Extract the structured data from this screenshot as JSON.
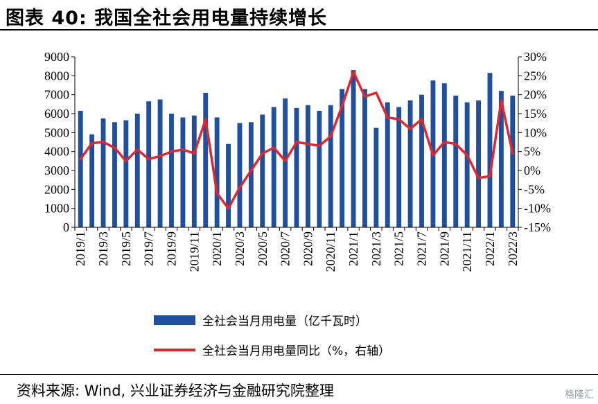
{
  "header": {
    "title": "图表 40:  我国全社会用电量持续增长"
  },
  "footer": {
    "source": "资料来源:  Wind, 兴业证券经济与金融研究院整理",
    "watermark": "格隆汇"
  },
  "colors": {
    "bar": "#1F4FA0",
    "line": "#E4262B",
    "axis": "#000000"
  },
  "chart_data": {
    "type": "bar",
    "categories": [
      "2019/1",
      "2019/2",
      "2019/3",
      "2019/4",
      "2019/5",
      "2019/6",
      "2019/7",
      "2019/8",
      "2019/9",
      "2019/10",
      "2019/11",
      "2019/12",
      "2020/1",
      "2020/2",
      "2020/3",
      "2020/4",
      "2020/5",
      "2020/6",
      "2020/7",
      "2020/8",
      "2020/9",
      "2020/10",
      "2020/11",
      "2020/12",
      "2021/1",
      "2021/2",
      "2021/3",
      "2021/4",
      "2021/5",
      "2021/6",
      "2021/7",
      "2021/8",
      "2021/9",
      "2021/10",
      "2021/11",
      "2021/12",
      "2022/1",
      "2022/2",
      "2022/3"
    ],
    "x_tick_labels": [
      "2019/1",
      "2019/3",
      "2019/5",
      "2019/7",
      "2019/9",
      "2019/11",
      "2020/1",
      "2020/3",
      "2020/5",
      "2020/7",
      "2020/9",
      "2020/11",
      "2021/1",
      "2021/3",
      "2021/5",
      "2021/7",
      "2021/9",
      "2021/11",
      "2022/1",
      "2022/3"
    ],
    "series": [
      {
        "name": "全社会当月用电量（亿千瓦时）",
        "type": "bar",
        "axis": "left",
        "values": [
          6150,
          4900,
          5750,
          5550,
          5650,
          6000,
          6650,
          6750,
          6000,
          5800,
          5900,
          7100,
          5800,
          4400,
          5500,
          5550,
          5950,
          6350,
          6800,
          6300,
          6450,
          6150,
          6450,
          7300,
          8300,
          7300,
          5250,
          6600,
          6350,
          6700,
          7000,
          7750,
          7600,
          6950,
          6600,
          6700,
          8150,
          7200,
          6950
        ]
      },
      {
        "name": "全社会当月用电量同比（%，右轴）",
        "type": "line",
        "axis": "right",
        "values": [
          3.0,
          7.2,
          7.5,
          6.0,
          2.5,
          5.5,
          3.0,
          3.8,
          5.0,
          5.5,
          4.5,
          13.5,
          -6.0,
          -10.0,
          -4.5,
          0.0,
          4.5,
          6.0,
          2.5,
          7.5,
          7.0,
          6.5,
          9.0,
          17.0,
          26.0,
          19.5,
          20.5,
          14.0,
          13.5,
          11.0,
          13.5,
          4.0,
          7.5,
          7.0,
          4.0,
          -2.0,
          -1.5,
          18.5,
          4.5
        ]
      }
    ],
    "y_left": {
      "min": 0,
      "max": 9000,
      "ticks": [
        "0",
        "1000",
        "2000",
        "3000",
        "4000",
        "5000",
        "6000",
        "7000",
        "8000",
        "9000"
      ]
    },
    "y_right": {
      "min": -15,
      "max": 30,
      "ticks": [
        "-15%",
        "-10%",
        "-5%",
        "0%",
        "5%",
        "10%",
        "15%",
        "20%",
        "25%",
        "30%"
      ]
    },
    "legend": [
      "全社会当月用电量（亿千瓦时）",
      "全社会当月用电量同比（%，右轴）"
    ],
    "legend_position": "bottom",
    "grid": false
  }
}
